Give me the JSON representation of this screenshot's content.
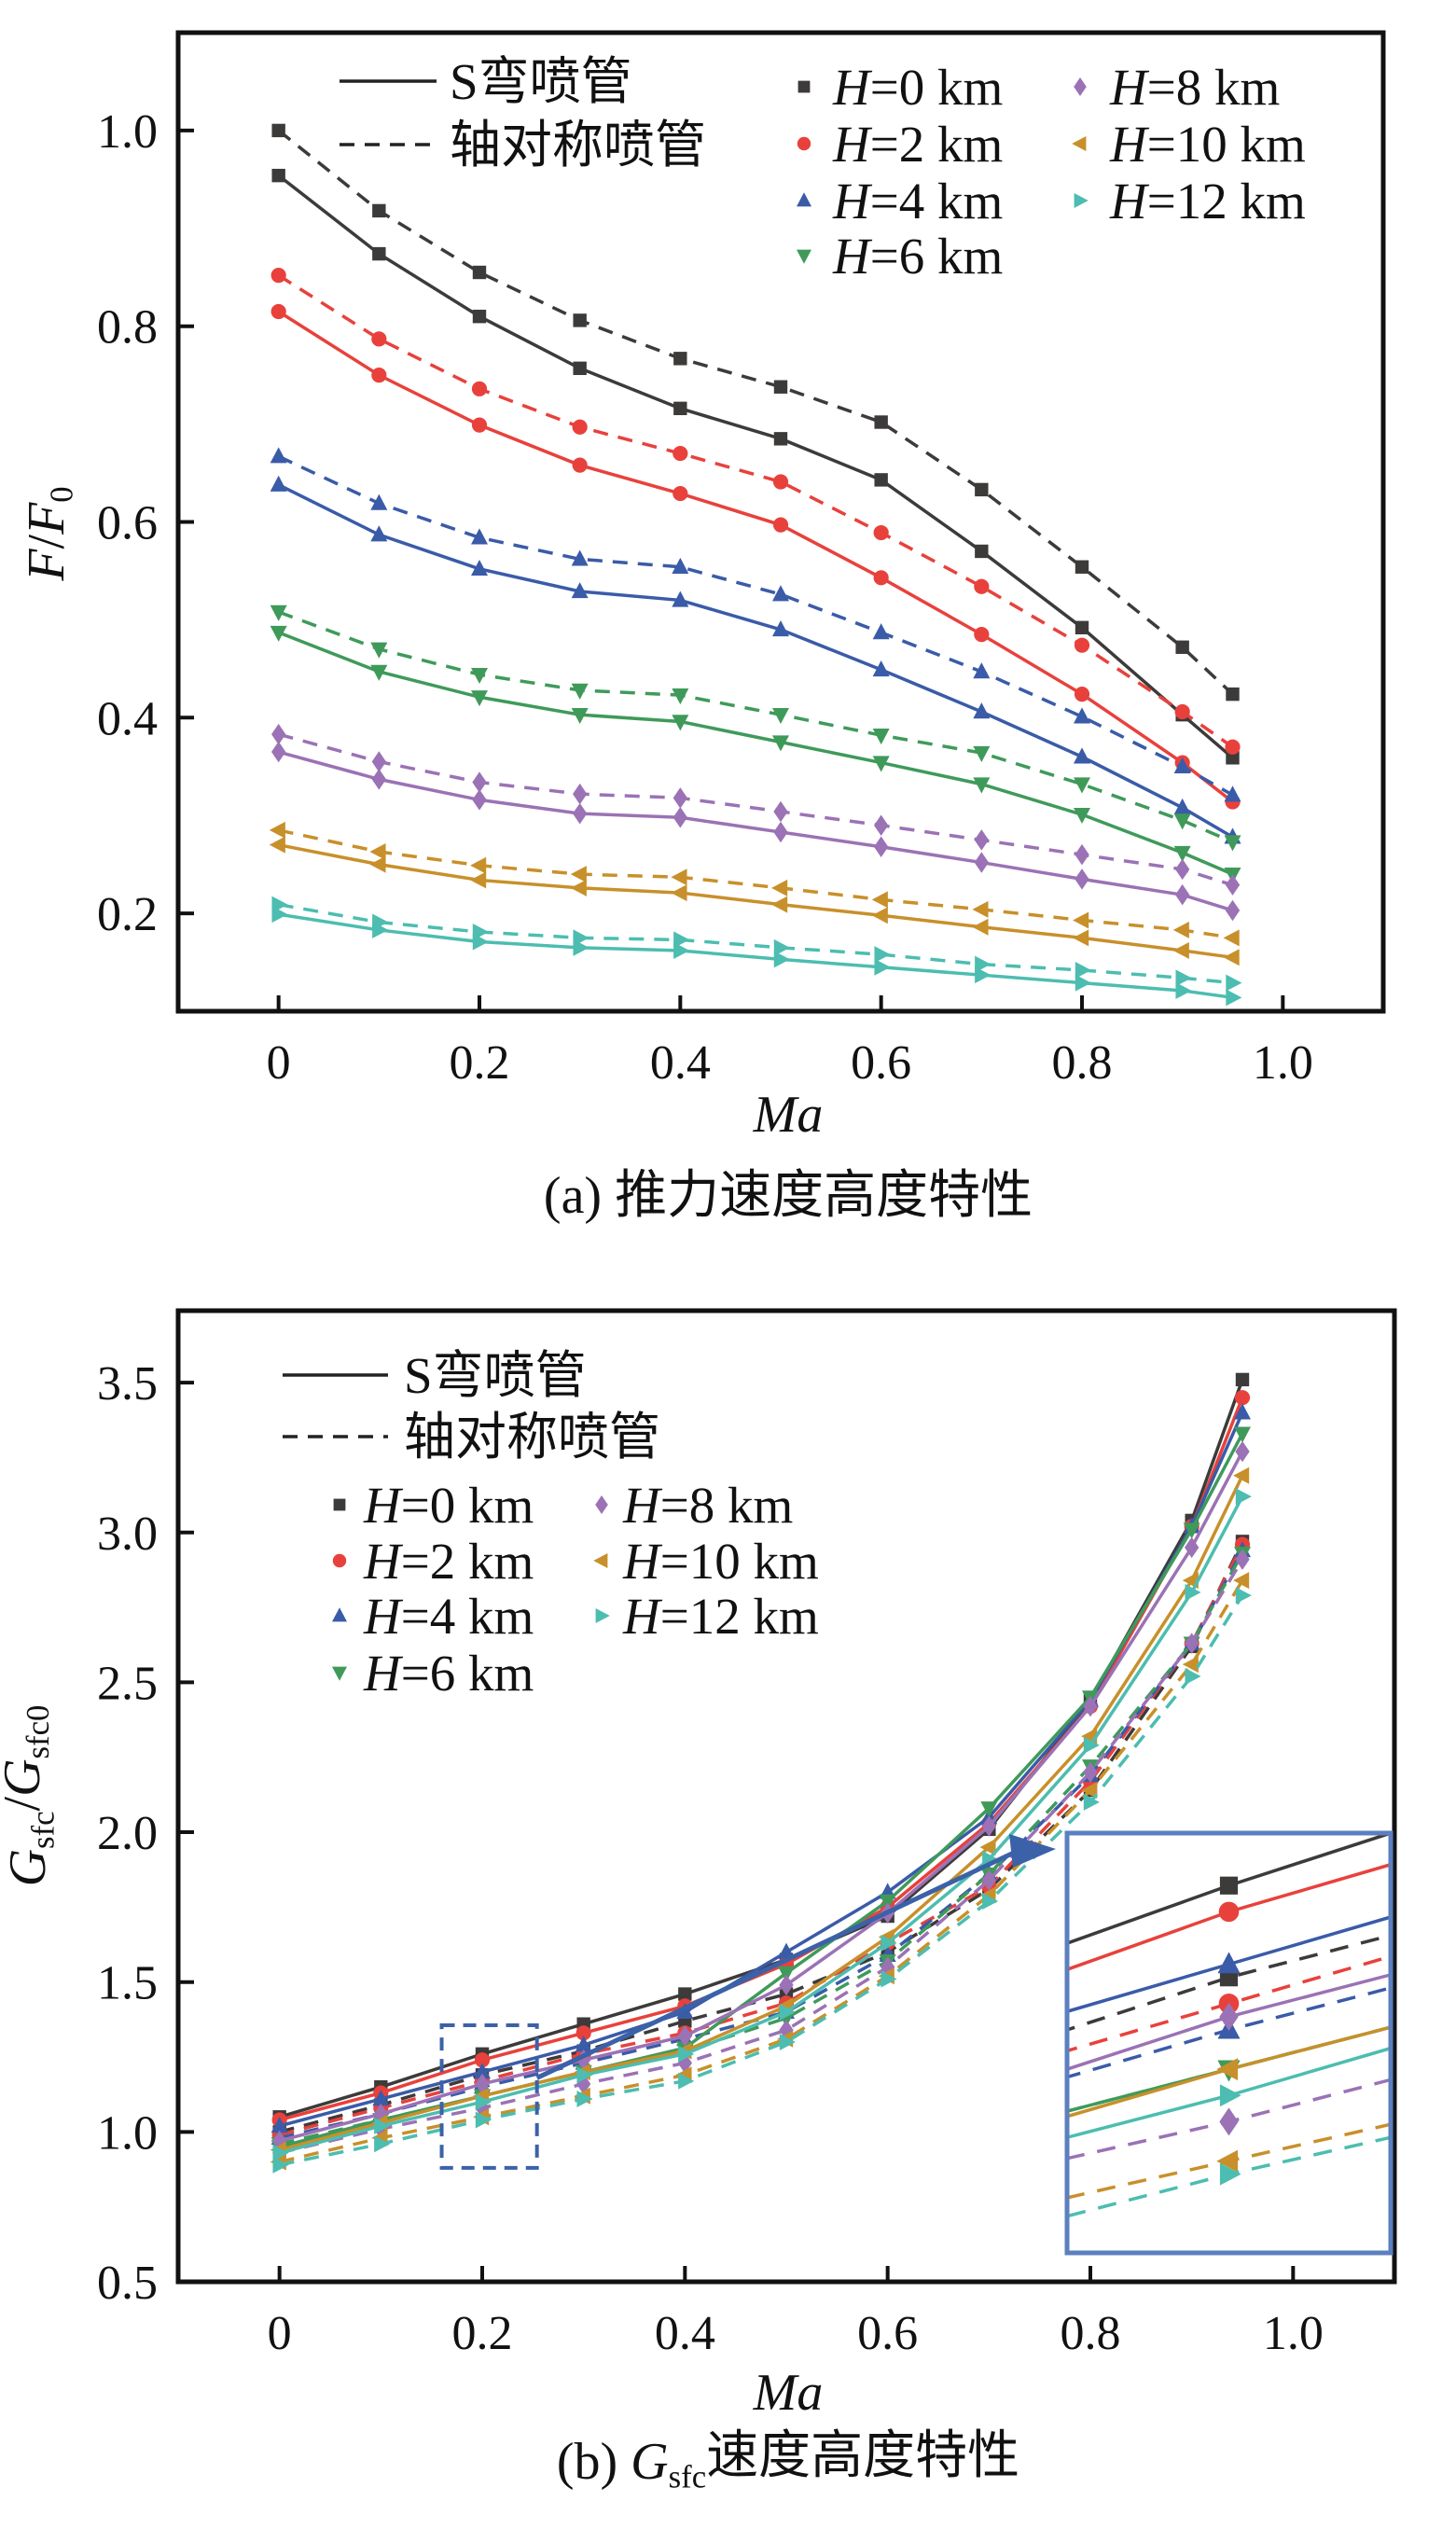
{
  "chart_data": [
    {
      "type": "line",
      "caption": "(a) 推力速度高度特性",
      "xlabel": "Ma",
      "ylabel_parts": [
        {
          "t": "F",
          "s": "i"
        },
        {
          "t": "/",
          "s": ""
        },
        {
          "t": "F",
          "s": "i"
        },
        {
          "t": "0",
          "s": "sub"
        }
      ],
      "xlim": [
        -0.1,
        1.1
      ],
      "ylim": [
        0.1,
        1.1
      ],
      "xticks": [
        0,
        0.2,
        0.4,
        0.6,
        0.8,
        1.0
      ],
      "xtick_labels": [
        "0",
        "0.2",
        "0.4",
        "0.6",
        "0.8",
        "1.0"
      ],
      "yticks": [
        0.2,
        0.4,
        0.6,
        0.8,
        1.0
      ],
      "ytick_labels": [
        "0.2",
        "0.4",
        "0.6",
        "0.8",
        "1.0"
      ],
      "x": [
        0,
        0.1,
        0.2,
        0.3,
        0.4,
        0.5,
        0.6,
        0.7,
        0.8,
        0.9,
        0.95
      ],
      "legend": {
        "placement": "top",
        "line_styles": [
          {
            "label": "S弯喷管",
            "dash": false
          },
          {
            "label": "轴对称喷管",
            "dash": true
          }
        ],
        "altitudes": [
          {
            "var": "H",
            "text": "=0 km",
            "color": "#3d3a3a",
            "marker": "square"
          },
          {
            "var": "H",
            "text": "=2 km",
            "color": "#e8413c",
            "marker": "circle"
          },
          {
            "var": "H",
            "text": "=4 km",
            "color": "#3a5ba8",
            "marker": "triangle-up"
          },
          {
            "var": "H",
            "text": "=6 km",
            "color": "#3f9a5a",
            "marker": "triangle-down"
          },
          {
            "var": "H",
            "text": "=8 km",
            "color": "#9b72b5",
            "marker": "diamond"
          },
          {
            "var": "H",
            "text": "=10 km",
            "color": "#c8902a",
            "marker": "triangle-left"
          },
          {
            "var": "H",
            "text": "=12 km",
            "color": "#4cbdb0",
            "marker": "triangle-right"
          }
        ]
      },
      "series": [
        {
          "name": "S弯喷管 H=0 km",
          "alt": 0,
          "dash": false,
          "values": [
            0.954,
            0.874,
            0.81,
            0.757,
            0.716,
            0.685,
            0.643,
            0.57,
            0.492,
            0.403,
            0.359
          ]
        },
        {
          "name": "轴对称喷管 H=0 km",
          "alt": 0,
          "dash": true,
          "values": [
            1.0,
            0.918,
            0.855,
            0.806,
            0.767,
            0.738,
            0.702,
            0.633,
            0.554,
            0.472,
            0.424
          ]
        },
        {
          "name": "S弯喷管 H=2 km",
          "alt": 1,
          "dash": false,
          "values": [
            0.815,
            0.75,
            0.699,
            0.658,
            0.629,
            0.597,
            0.543,
            0.485,
            0.424,
            0.354,
            0.314
          ]
        },
        {
          "name": "轴对称喷管 H=2 km",
          "alt": 1,
          "dash": true,
          "values": [
            0.852,
            0.787,
            0.736,
            0.697,
            0.67,
            0.641,
            0.589,
            0.534,
            0.474,
            0.406,
            0.37
          ]
        },
        {
          "name": "S弯喷管 H=4 km",
          "alt": 2,
          "dash": false,
          "values": [
            0.638,
            0.587,
            0.552,
            0.529,
            0.52,
            0.49,
            0.449,
            0.406,
            0.36,
            0.308,
            0.278
          ]
        },
        {
          "name": "轴对称喷管 H=4 km",
          "alt": 2,
          "dash": true,
          "values": [
            0.667,
            0.619,
            0.584,
            0.562,
            0.554,
            0.526,
            0.487,
            0.447,
            0.401,
            0.35,
            0.321
          ]
        },
        {
          "name": "S弯喷管 H=6 km",
          "alt": 3,
          "dash": false,
          "values": [
            0.487,
            0.447,
            0.421,
            0.403,
            0.396,
            0.375,
            0.354,
            0.332,
            0.301,
            0.262,
            0.24
          ]
        },
        {
          "name": "轴对称喷管 H=6 km",
          "alt": 3,
          "dash": true,
          "values": [
            0.508,
            0.47,
            0.444,
            0.428,
            0.423,
            0.403,
            0.382,
            0.364,
            0.332,
            0.295,
            0.273
          ]
        },
        {
          "name": "S弯喷管 H=8 km",
          "alt": 4,
          "dash": false,
          "values": [
            0.365,
            0.337,
            0.316,
            0.302,
            0.298,
            0.283,
            0.268,
            0.252,
            0.235,
            0.219,
            0.203
          ]
        },
        {
          "name": "轴对称喷管 H=8 km",
          "alt": 4,
          "dash": true,
          "values": [
            0.383,
            0.355,
            0.334,
            0.322,
            0.318,
            0.304,
            0.29,
            0.275,
            0.26,
            0.245,
            0.229
          ]
        },
        {
          "name": "S弯喷管 H=10 km",
          "alt": 5,
          "dash": false,
          "values": [
            0.27,
            0.25,
            0.234,
            0.226,
            0.221,
            0.209,
            0.198,
            0.186,
            0.175,
            0.162,
            0.155
          ]
        },
        {
          "name": "轴对称喷管 H=10 km",
          "alt": 5,
          "dash": true,
          "values": [
            0.285,
            0.263,
            0.249,
            0.24,
            0.237,
            0.226,
            0.214,
            0.204,
            0.193,
            0.183,
            0.175
          ]
        },
        {
          "name": "S弯喷管 H=12 km",
          "alt": 6,
          "dash": false,
          "values": [
            0.199,
            0.183,
            0.171,
            0.165,
            0.162,
            0.153,
            0.145,
            0.137,
            0.129,
            0.121,
            0.114
          ]
        },
        {
          "name": "轴对称喷管 H=12 km",
          "alt": 6,
          "dash": true,
          "values": [
            0.209,
            0.191,
            0.181,
            0.175,
            0.173,
            0.165,
            0.158,
            0.148,
            0.142,
            0.134,
            0.129
          ]
        }
      ]
    },
    {
      "type": "line",
      "caption_parts": [
        {
          "t": "(b) ",
          "s": ""
        },
        {
          "t": "G",
          "s": "i"
        },
        {
          "t": "sfc",
          "s": "sub"
        },
        {
          "t": "速度高度特性",
          "s": ""
        }
      ],
      "xlabel": "Ma",
      "ylabel_parts": [
        {
          "t": "G",
          "s": "i"
        },
        {
          "t": "sfc",
          "s": "sub"
        },
        {
          "t": "/",
          "s": ""
        },
        {
          "t": "G",
          "s": "i"
        },
        {
          "t": "sfc0",
          "s": "sub"
        }
      ],
      "xlim": [
        -0.1,
        1.1
      ],
      "ylim": [
        0.5,
        3.74
      ],
      "xticks": [
        0,
        0.2,
        0.4,
        0.6,
        0.8,
        1.0
      ],
      "xtick_labels": [
        "0",
        "0.2",
        "0.4",
        "0.6",
        "0.8",
        "1.0"
      ],
      "yticks": [
        0.5,
        1.0,
        1.5,
        2.0,
        2.5,
        3.0,
        3.5
      ],
      "ytick_labels": [
        "0.5",
        "1.0",
        "1.5",
        "2.0",
        "2.5",
        "3.0",
        "3.5"
      ],
      "x": [
        0,
        0.1,
        0.2,
        0.3,
        0.4,
        0.5,
        0.6,
        0.7,
        0.8,
        0.9,
        0.95
      ],
      "inset": {
        "xlim": [
          0.16,
          0.24
        ],
        "ylim": [
          0.98,
          1.3
        ],
        "source_box": {
          "xlim": [
            0.16,
            0.254
          ],
          "ylim": [
            0.88,
            1.356
          ]
        }
      },
      "legend": {
        "placement": "top-left",
        "line_styles": [
          {
            "label": "S弯喷管",
            "dash": false
          },
          {
            "label": "轴对称喷管",
            "dash": true
          }
        ],
        "altitudes": [
          {
            "var": "H",
            "text": "=0 km",
            "color": "#3d3a3a",
            "marker": "square"
          },
          {
            "var": "H",
            "text": "=2 km",
            "color": "#e8413c",
            "marker": "circle"
          },
          {
            "var": "H",
            "text": "=4 km",
            "color": "#3a5ba8",
            "marker": "triangle-up"
          },
          {
            "var": "H",
            "text": "=6 km",
            "color": "#3f9a5a",
            "marker": "triangle-down"
          },
          {
            "var": "H",
            "text": "=8 km",
            "color": "#9b72b5",
            "marker": "diamond"
          },
          {
            "var": "H",
            "text": "=10 km",
            "color": "#c8902a",
            "marker": "triangle-left"
          },
          {
            "var": "H",
            "text": "=12 km",
            "color": "#4cbdb0",
            "marker": "triangle-right"
          }
        ]
      },
      "series": [
        {
          "name": "S弯喷管 H=0 km",
          "alt": 0,
          "dash": false,
          "values": [
            1.05,
            1.15,
            1.26,
            1.36,
            1.46,
            1.575,
            1.72,
            2.01,
            2.44,
            3.04,
            3.51
          ]
        },
        {
          "name": "轴对称喷管 H=0 km",
          "alt": 0,
          "dash": true,
          "values": [
            1.0,
            1.09,
            1.19,
            1.27,
            1.37,
            1.46,
            1.6,
            1.81,
            2.14,
            2.62,
            2.97
          ]
        },
        {
          "name": "S弯喷管 H=2 km",
          "alt": 1,
          "dash": false,
          "values": [
            1.04,
            1.13,
            1.24,
            1.33,
            1.42,
            1.56,
            1.75,
            2.03,
            2.42,
            3.02,
            3.45
          ]
        },
        {
          "name": "轴对称喷管 H=2 km",
          "alt": 1,
          "dash": true,
          "values": [
            0.99,
            1.08,
            1.17,
            1.26,
            1.33,
            1.43,
            1.63,
            1.82,
            2.17,
            2.63,
            2.96
          ]
        },
        {
          "name": "S弯喷管 H=4 km",
          "alt": 2,
          "dash": false,
          "values": [
            1.02,
            1.11,
            1.2,
            1.29,
            1.4,
            1.6,
            1.8,
            2.05,
            2.44,
            3.02,
            3.4
          ]
        },
        {
          "name": "轴对称喷管 H=4 km",
          "alt": 2,
          "dash": true,
          "values": [
            0.98,
            1.06,
            1.15,
            1.23,
            1.31,
            1.4,
            1.59,
            1.86,
            2.19,
            2.63,
            2.94
          ]
        },
        {
          "name": "S弯喷管 H=6 km",
          "alt": 3,
          "dash": false,
          "values": [
            0.95,
            1.04,
            1.12,
            1.2,
            1.28,
            1.53,
            1.77,
            2.08,
            2.45,
            3.01,
            3.33
          ]
        },
        {
          "name": "轴对称喷管 H=6 km",
          "alt": 3,
          "dash": true,
          "values": [
            0.96,
            1.04,
            1.12,
            1.2,
            1.27,
            1.38,
            1.57,
            1.86,
            2.22,
            2.63,
            2.93
          ]
        },
        {
          "name": "S弯喷管 H=8 km",
          "alt": 4,
          "dash": false,
          "values": [
            0.97,
            1.06,
            1.16,
            1.24,
            1.32,
            1.49,
            1.73,
            2.02,
            2.42,
            2.95,
            3.27
          ]
        },
        {
          "name": "轴对称喷管 H=8 km",
          "alt": 4,
          "dash": true,
          "values": [
            0.93,
            1.01,
            1.08,
            1.16,
            1.23,
            1.34,
            1.55,
            1.84,
            2.2,
            2.63,
            2.91
          ]
        },
        {
          "name": "S弯喷管 H=10 km",
          "alt": 5,
          "dash": false,
          "values": [
            0.94,
            1.03,
            1.12,
            1.2,
            1.27,
            1.42,
            1.65,
            1.95,
            2.32,
            2.84,
            3.19
          ]
        },
        {
          "name": "轴对称喷管 H=10 km",
          "alt": 5,
          "dash": true,
          "values": [
            0.9,
            0.98,
            1.05,
            1.12,
            1.19,
            1.31,
            1.52,
            1.79,
            2.14,
            2.56,
            2.84
          ]
        },
        {
          "name": "S弯喷管 H=12 km",
          "alt": 6,
          "dash": false,
          "values": [
            0.93,
            1.02,
            1.1,
            1.19,
            1.26,
            1.4,
            1.63,
            1.91,
            2.29,
            2.8,
            3.12
          ]
        },
        {
          "name": "轴对称喷管 H=12 km",
          "alt": 6,
          "dash": true,
          "values": [
            0.89,
            0.96,
            1.04,
            1.11,
            1.17,
            1.3,
            1.51,
            1.77,
            2.1,
            2.52,
            2.79
          ]
        }
      ]
    }
  ]
}
